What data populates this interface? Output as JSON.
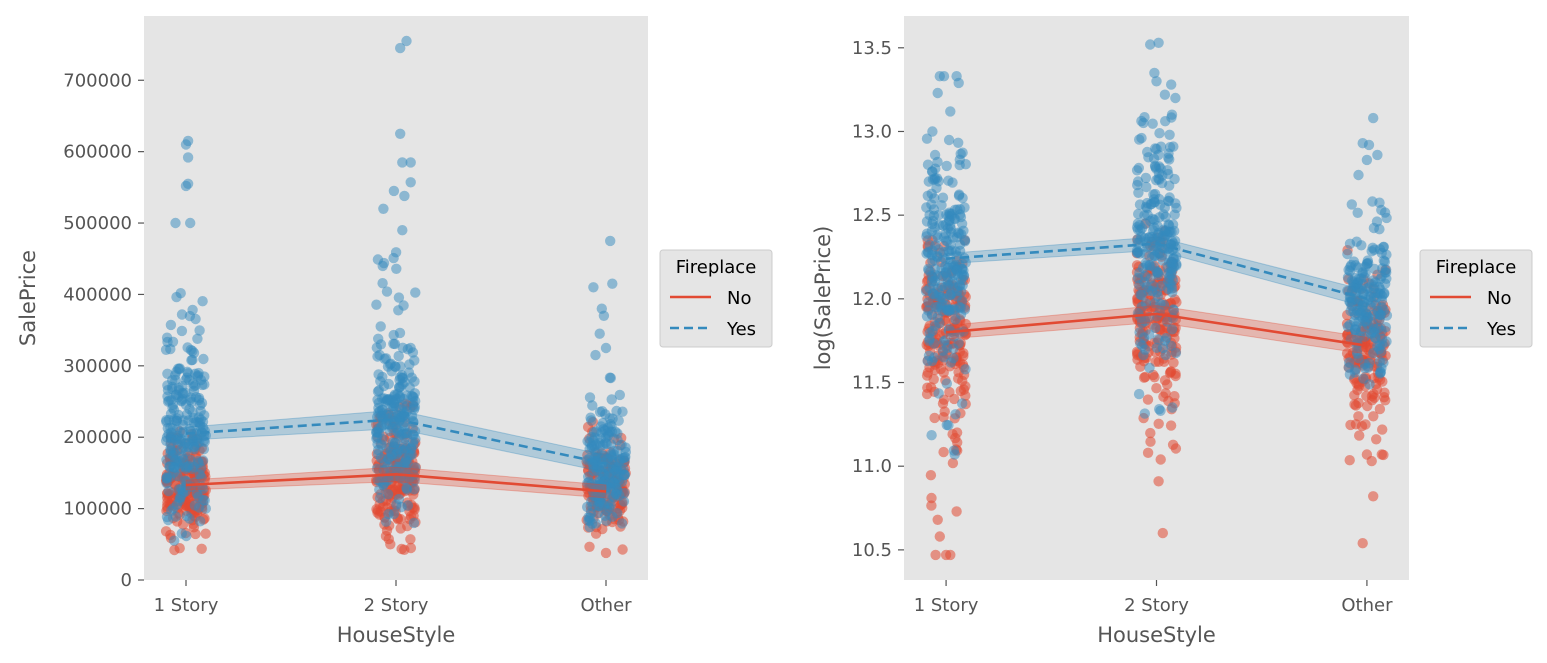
{
  "colors": {
    "no": "#E24A33",
    "yes": "#348ABD",
    "panel_bg": "#E5E5E5",
    "tick_text": "#555555",
    "legend_bg": "#E5E5E5",
    "legend_border": "#CCCCCC"
  },
  "chart_data": [
    {
      "type": "scatter",
      "subtype": "strip-with-pointplot",
      "categories": [
        "1 Story",
        "2 Story",
        "Other"
      ],
      "xlabel": "HouseStyle",
      "ylabel": "SalePrice",
      "ylim": [
        0,
        790000
      ],
      "yticks": [
        0,
        100000,
        200000,
        300000,
        400000,
        500000,
        600000,
        700000
      ],
      "ytick_labels": [
        "0",
        "100000",
        "200000",
        "300000",
        "400000",
        "500000",
        "600000",
        "700000"
      ],
      "grid": false,
      "legend": {
        "title": "Fireplace",
        "placement": "right-outside",
        "entries": [
          "No",
          "Yes"
        ]
      },
      "series": [
        {
          "name": "No",
          "line_style": "solid",
          "means": [
            133000,
            148000,
            124000
          ],
          "ci_low": [
            126000,
            138000,
            115000
          ],
          "ci_high": [
            140000,
            158000,
            133000
          ],
          "spread": [
            [
              35000,
              230000
            ],
            [
              40000,
              250000
            ],
            [
              38000,
              225000
            ]
          ],
          "outliers": [
            [],
            [
              [
                0.08,
                245000
              ]
            ],
            [
              [
                0.0,
                38000
              ]
            ]
          ]
        },
        {
          "name": "Yes",
          "line_style": "dashed",
          "means": [
            205000,
            225000,
            163000
          ],
          "ci_low": [
            196000,
            212000,
            151000
          ],
          "ci_high": [
            214000,
            238000,
            175000
          ],
          "spread": [
            [
              55000,
              420000
            ],
            [
              80000,
              470000
            ],
            [
              70000,
              300000
            ]
          ],
          "outliers": [
            [
              [
                -0.05,
                500000
              ],
              [
                0.02,
                500000
              ],
              [
                0.0,
                552000
              ],
              [
                0.01,
                555000
              ],
              [
                0.01,
                592000
              ],
              [
                0.0,
                610000
              ],
              [
                0.01,
                615000
              ]
            ],
            [
              [
                0.02,
                745000
              ],
              [
                0.05,
                755000
              ],
              [
                0.02,
                625000
              ],
              [
                0.03,
                585000
              ],
              [
                0.07,
                585000
              ],
              [
                0.07,
                557000
              ],
              [
                -0.01,
                545000
              ],
              [
                0.04,
                538000
              ],
              [
                -0.06,
                520000
              ],
              [
                0.03,
                490000
              ]
            ],
            [
              [
                -0.06,
                410000
              ],
              [
                0.02,
                475000
              ],
              [
                0.03,
                415000
              ],
              [
                -0.02,
                380000
              ],
              [
                -0.01,
                370000
              ],
              [
                -0.03,
                345000
              ],
              [
                0.0,
                325000
              ],
              [
                -0.05,
                315000
              ]
            ]
          ]
        }
      ]
    },
    {
      "type": "scatter",
      "subtype": "strip-with-pointplot",
      "categories": [
        "1 Story",
        "2 Story",
        "Other"
      ],
      "xlabel": "HouseStyle",
      "ylabel": "log(SalePrice)",
      "ylim": [
        10.32,
        13.69
      ],
      "yticks": [
        10.5,
        11.0,
        11.5,
        12.0,
        12.5,
        13.0,
        13.5
      ],
      "ytick_labels": [
        "10.5",
        "11.0",
        "11.5",
        "12.0",
        "12.5",
        "13.0",
        "13.5"
      ],
      "grid": false,
      "legend": {
        "title": "Fireplace",
        "placement": "right-outside",
        "entries": [
          "No",
          "Yes"
        ]
      },
      "series": [
        {
          "name": "No",
          "line_style": "solid",
          "means": [
            11.8,
            11.91,
            11.72
          ],
          "ci_low": [
            11.76,
            11.86,
            11.67
          ],
          "ci_high": [
            11.84,
            11.96,
            11.77
          ],
          "spread": [
            [
              10.7,
              12.35
            ],
            [
              11.1,
              12.45
            ],
            [
              11.0,
              12.3
            ]
          ],
          "outliers": [
            [
              [
                -0.05,
                10.47
              ],
              [
                0.0,
                10.47
              ],
              [
                0.02,
                10.47
              ],
              [
                -0.03,
                10.58
              ],
              [
                0.05,
                10.73
              ],
              [
                -0.04,
                10.68
              ]
            ],
            [
              [
                0.03,
                10.6
              ],
              [
                0.01,
                10.91
              ],
              [
                0.02,
                11.04
              ],
              [
                -0.04,
                11.08
              ]
            ],
            [
              [
                -0.02,
                10.54
              ],
              [
                0.03,
                10.82
              ],
              [
                0.0,
                11.07
              ]
            ]
          ]
        },
        {
          "name": "Yes",
          "line_style": "dashed",
          "means": [
            12.24,
            12.33,
            12.0
          ],
          "ci_low": [
            12.21,
            12.29,
            11.95
          ],
          "ci_high": [
            12.27,
            12.37,
            12.05
          ],
          "spread": [
            [
              11.0,
              13.0
            ],
            [
              11.3,
              13.1
            ],
            [
              11.4,
              12.6
            ]
          ],
          "outliers": [
            [
              [
                -0.03,
                13.33
              ],
              [
                -0.01,
                13.33
              ],
              [
                0.05,
                13.33
              ],
              [
                0.06,
                13.29
              ],
              [
                -0.04,
                13.23
              ],
              [
                0.02,
                13.12
              ]
            ],
            [
              [
                -0.03,
                13.52
              ],
              [
                0.01,
                13.53
              ],
              [
                -0.01,
                13.35
              ],
              [
                0.07,
                13.28
              ],
              [
                0.09,
                13.2
              ],
              [
                0.04,
                13.22
              ],
              [
                0.0,
                13.3
              ]
            ],
            [
              [
                0.03,
                13.08
              ],
              [
                -0.02,
                12.93
              ],
              [
                0.01,
                12.92
              ],
              [
                0.05,
                12.86
              ],
              [
                0.0,
                12.83
              ],
              [
                -0.04,
                12.74
              ]
            ]
          ]
        }
      ]
    }
  ]
}
